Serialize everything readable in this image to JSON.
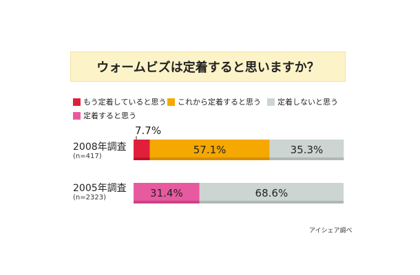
{
  "title": "ウォームビズは定着すると思いますか？",
  "legend": [
    {
      "label": "もう定着していると思う",
      "color": "#e0203a",
      "icon": "square-swatch"
    },
    {
      "label": "これから定着すると思う",
      "color": "#f5a800",
      "icon": "square-swatch"
    },
    {
      "label": "定着しないと思う",
      "color": "#cdd5d2",
      "icon": "square-swatch"
    },
    {
      "label": "定着すると思う",
      "color": "#e85aa0",
      "icon": "square-swatch"
    }
  ],
  "chart_data": {
    "type": "bar",
    "orientation": "horizontal-stacked-100",
    "xlim": [
      0,
      100
    ],
    "rows": [
      {
        "label": "2008年調査",
        "n_label": "(n=417)",
        "segments": [
          {
            "category": "もう定着していると思う",
            "value": 7.7,
            "label": "7.7%"
          },
          {
            "category": "これから定着すると思う",
            "value": 57.1,
            "label": "57.1%"
          },
          {
            "category": "定着しないと思う",
            "value": 35.3,
            "label": "35.3%"
          }
        ]
      },
      {
        "label": "2005年調査",
        "n_label": "(n=2323)",
        "segments": [
          {
            "category": "定着すると思う",
            "value": 31.4,
            "label": "31.4%"
          },
          {
            "category": "定着しないと思う",
            "value": 68.6,
            "label": "68.6%"
          }
        ]
      }
    ]
  },
  "source": "アイシェア調べ"
}
